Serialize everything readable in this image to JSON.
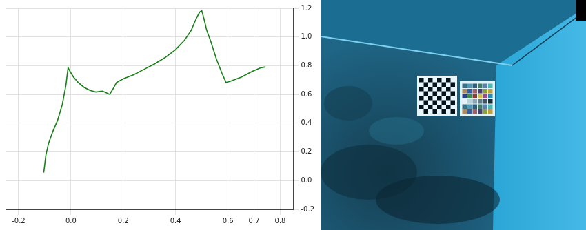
{
  "chart_data": {
    "type": "scatter",
    "x": [
      -0.104,
      -0.102,
      -0.096,
      -0.086,
      -0.07,
      -0.051,
      -0.033,
      -0.019,
      -0.011,
      -0.003,
      0.01,
      0.028,
      0.05,
      0.073,
      0.095,
      0.121,
      0.148,
      0.161,
      0.174,
      0.201,
      0.24,
      0.28,
      0.32,
      0.36,
      0.399,
      0.434,
      0.46,
      0.479,
      0.492,
      0.5,
      0.508,
      0.519,
      0.535,
      0.556,
      0.577,
      0.593,
      0.611,
      0.651,
      0.691,
      0.726,
      0.744
    ],
    "values": [
      0.056,
      0.083,
      0.175,
      0.257,
      0.339,
      0.42,
      0.53,
      0.666,
      0.786,
      0.759,
      0.721,
      0.683,
      0.65,
      0.628,
      0.617,
      0.623,
      0.601,
      0.639,
      0.683,
      0.71,
      0.737,
      0.775,
      0.813,
      0.857,
      0.911,
      0.977,
      1.047,
      1.129,
      1.173,
      1.183,
      1.129,
      1.047,
      0.966,
      0.846,
      0.748,
      0.683,
      0.693,
      0.721,
      0.759,
      0.786,
      0.792
    ],
    "color": "#1a7f1a",
    "line_style": "solid",
    "marker": "none",
    "xlim": [
      -0.25,
      0.85
    ],
    "xticks": [
      -0.2,
      {
        "value": 0,
        "label": "0.0"
      },
      0.2,
      0.4,
      0.6,
      0.7,
      0.8
    ],
    "ylim": [
      -0.2,
      1.2
    ],
    "yticks": [
      -0.2,
      {
        "value": 0,
        "label": "0.0"
      },
      0.2,
      0.4,
      0.6,
      0.8,
      {
        "value": 1,
        "label": "1.0"
      },
      1.2
    ],
    "grid": true
  }
}
